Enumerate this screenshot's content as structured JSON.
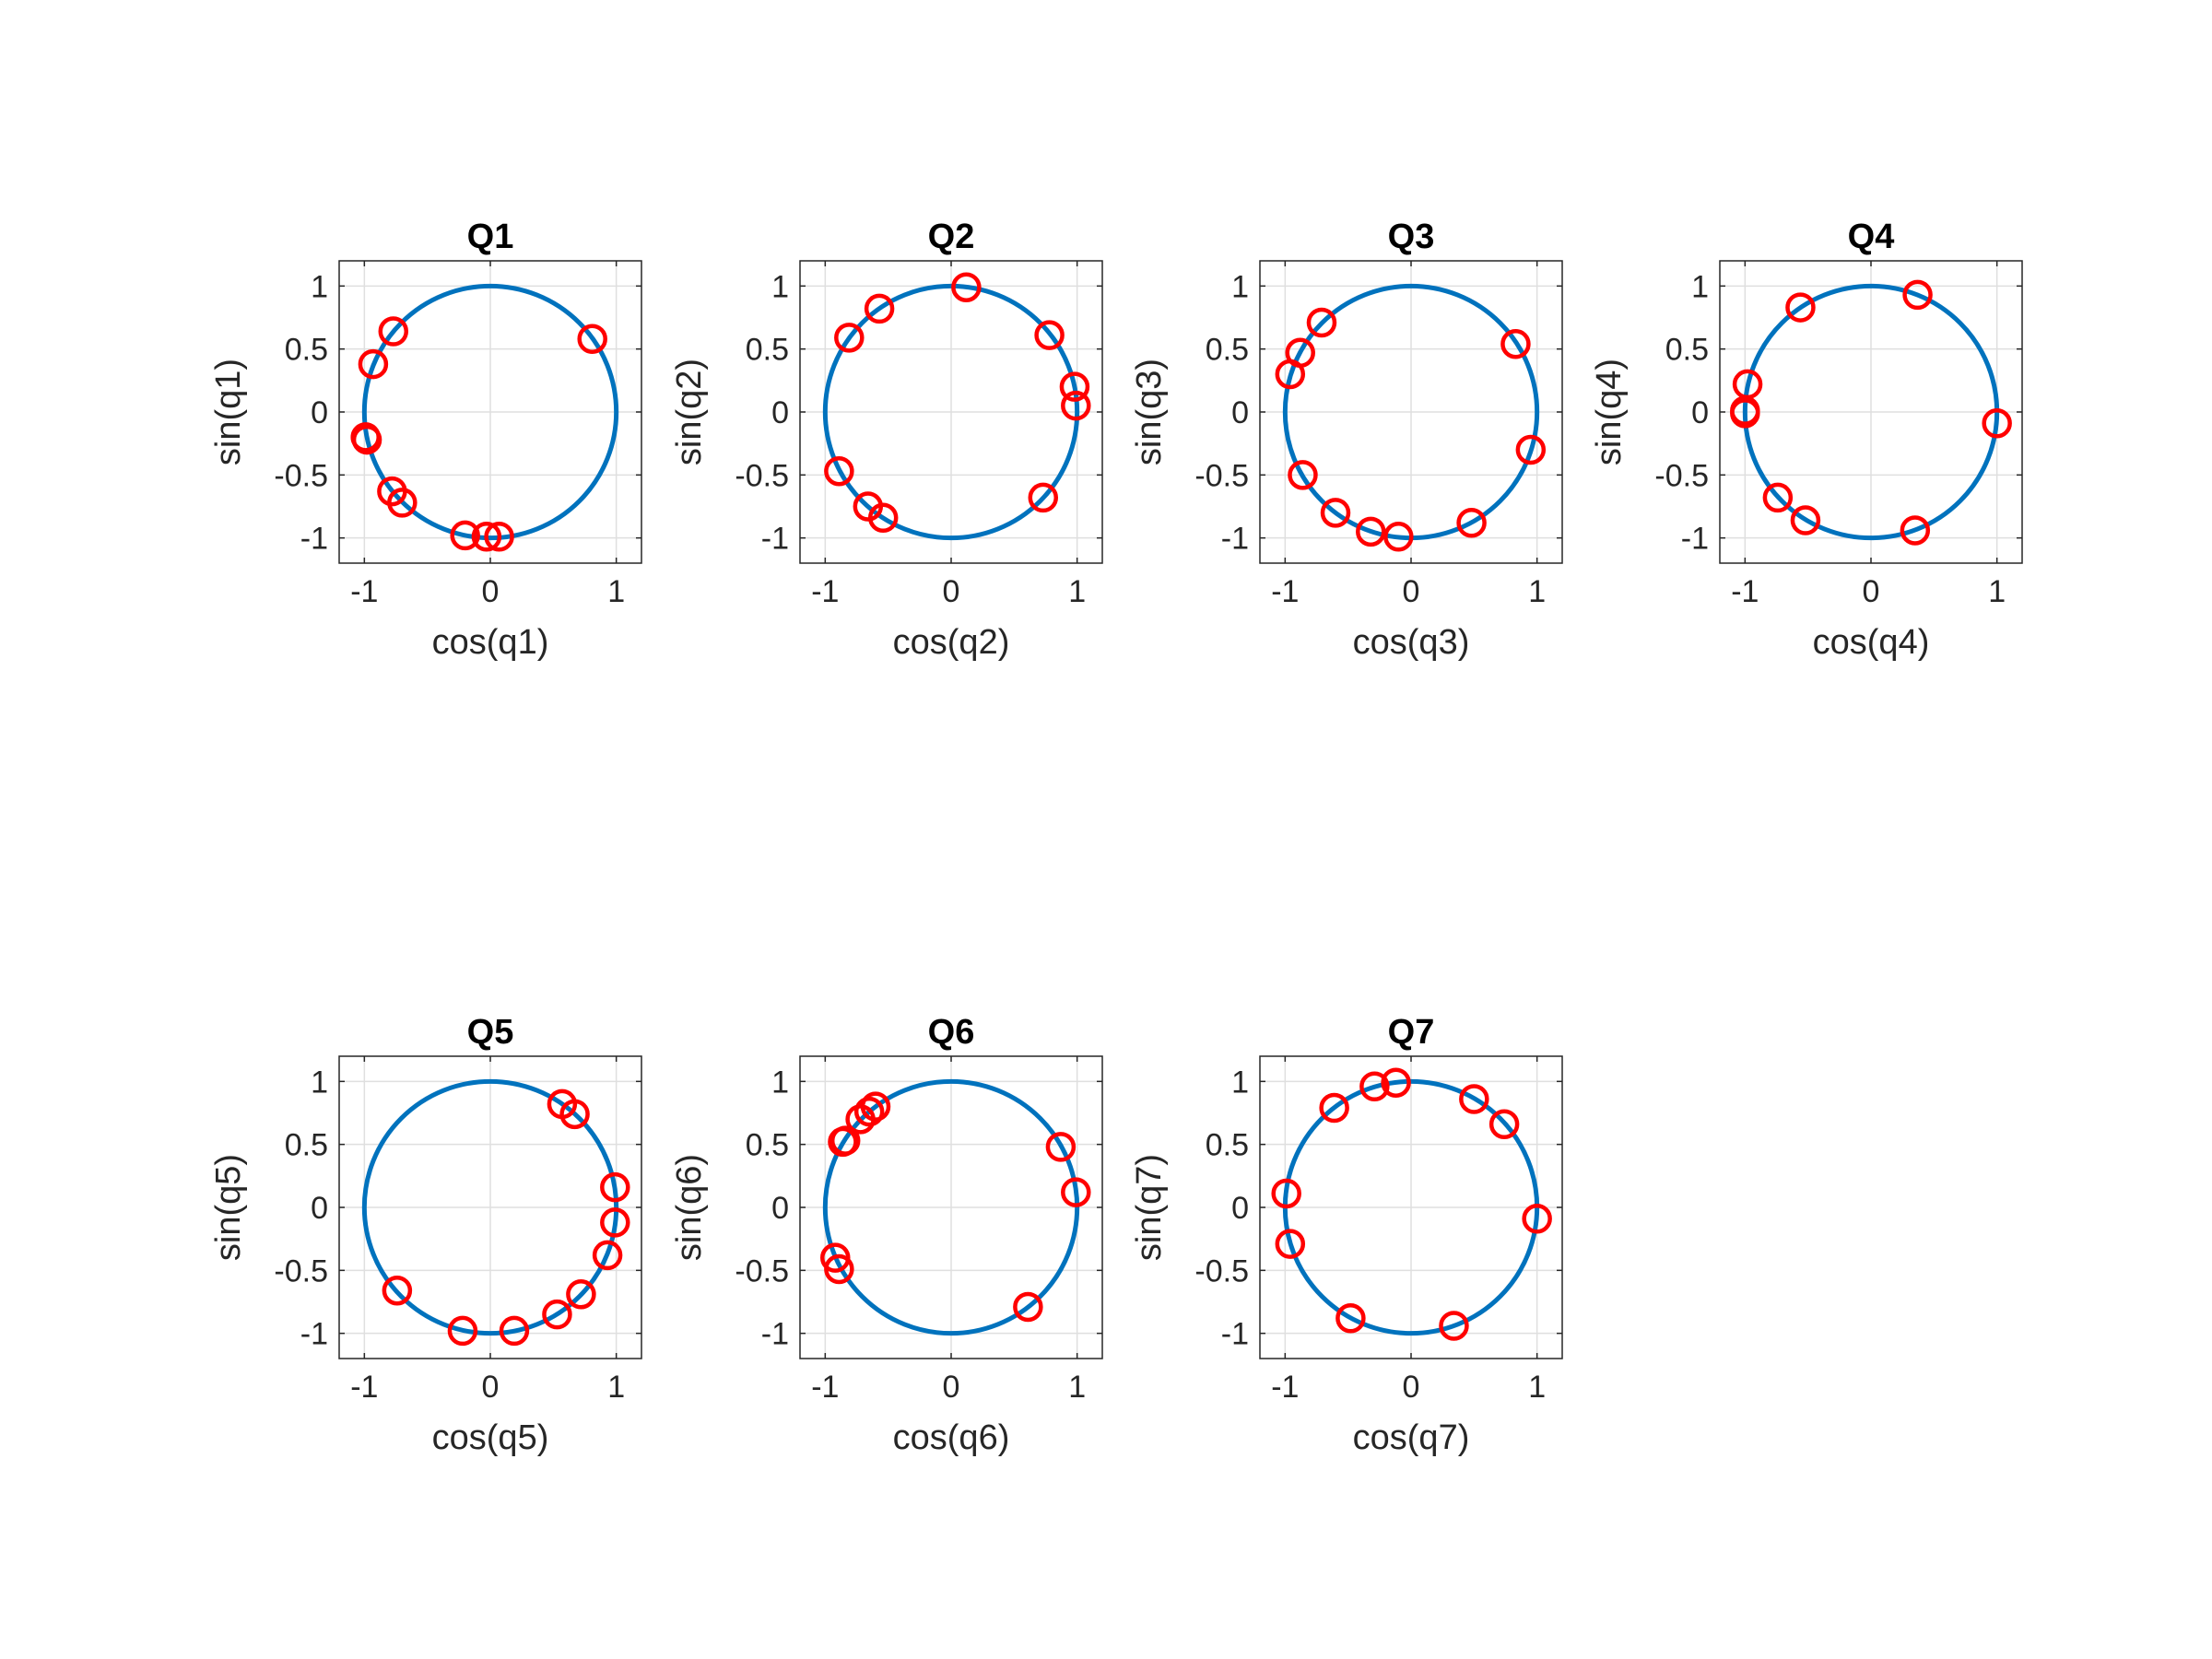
{
  "colors": {
    "circle": "#0072BD",
    "markers": "#FF0000",
    "axes": "#262626",
    "grid": "#DFDFDF"
  },
  "chart_data": [
    {
      "type": "scatter",
      "title": "Q1",
      "xlabel": "cos(q1)",
      "ylabel": "sin(q1)",
      "xlim": [
        -1.2,
        1.2
      ],
      "ylim": [
        -1.2,
        1.2
      ],
      "xticks": [
        -1,
        0,
        1
      ],
      "yticks": [
        -1,
        -0.5,
        0,
        0.5,
        1
      ],
      "xtick_labels": [
        "-1",
        "0",
        "1"
      ],
      "ytick_labels": [
        "-1",
        "-0.5",
        "0",
        "0.5",
        "1"
      ],
      "grid": true,
      "unit_circle": true,
      "points": [
        [
          0.81,
          0.58
        ],
        [
          -0.77,
          0.64
        ],
        [
          -0.93,
          0.38
        ],
        [
          -0.99,
          -0.2
        ],
        [
          -0.98,
          -0.22
        ],
        [
          -0.78,
          -0.63
        ],
        [
          -0.7,
          -0.72
        ],
        [
          -0.2,
          -0.98
        ],
        [
          -0.03,
          -0.99
        ],
        [
          0.07,
          -0.99
        ]
      ]
    },
    {
      "type": "scatter",
      "title": "Q2",
      "xlabel": "cos(q2)",
      "ylabel": "sin(q2)",
      "xlim": [
        -1.2,
        1.2
      ],
      "ylim": [
        -1.2,
        1.2
      ],
      "xticks": [
        -1,
        0,
        1
      ],
      "yticks": [
        -1,
        -0.5,
        0,
        0.5,
        1
      ],
      "xtick_labels": [
        "-1",
        "0",
        "1"
      ],
      "ytick_labels": [
        "-1",
        "-0.5",
        "0",
        "0.5",
        "1"
      ],
      "grid": true,
      "unit_circle": true,
      "points": [
        [
          0.12,
          0.99
        ],
        [
          -0.57,
          0.82
        ],
        [
          -0.81,
          0.59
        ],
        [
          0.78,
          0.61
        ],
        [
          0.98,
          0.2
        ],
        [
          0.99,
          0.05
        ],
        [
          -0.89,
          -0.47
        ],
        [
          -0.66,
          -0.75
        ],
        [
          -0.54,
          -0.84
        ],
        [
          0.73,
          -0.68
        ]
      ]
    },
    {
      "type": "scatter",
      "title": "Q3",
      "xlabel": "cos(q3)",
      "ylabel": "sin(q3)",
      "xlim": [
        -1.2,
        1.2
      ],
      "ylim": [
        -1.2,
        1.2
      ],
      "xticks": [
        -1,
        0,
        1
      ],
      "yticks": [
        -1,
        -0.5,
        0,
        0.5,
        1
      ],
      "xtick_labels": [
        "-1",
        "0",
        "1"
      ],
      "ytick_labels": [
        "-1",
        "-0.5",
        "0",
        "0.5",
        "1"
      ],
      "grid": true,
      "unit_circle": true,
      "points": [
        [
          -0.71,
          0.71
        ],
        [
          -0.88,
          0.47
        ],
        [
          -0.96,
          0.3
        ],
        [
          0.83,
          0.54
        ],
        [
          0.95,
          -0.3
        ],
        [
          -0.86,
          -0.5
        ],
        [
          -0.6,
          -0.8
        ],
        [
          -0.32,
          -0.95
        ],
        [
          -0.1,
          -0.99
        ],
        [
          0.48,
          -0.88
        ]
      ]
    },
    {
      "type": "scatter",
      "title": "Q4",
      "xlabel": "cos(q4)",
      "ylabel": "sin(q4)",
      "xlim": [
        -1.2,
        1.2
      ],
      "ylim": [
        -1.2,
        1.2
      ],
      "xticks": [
        -1,
        0,
        1
      ],
      "yticks": [
        -1,
        -0.5,
        0,
        0.5,
        1
      ],
      "xtick_labels": [
        "-1",
        "0",
        "1"
      ],
      "ytick_labels": [
        "-1",
        "-0.5",
        "0",
        "0.5",
        "1"
      ],
      "grid": true,
      "unit_circle": true,
      "points": [
        [
          -0.56,
          0.83
        ],
        [
          0.37,
          0.93
        ],
        [
          -0.98,
          0.22
        ],
        [
          -1.0,
          0.01
        ],
        [
          -1.0,
          -0.01
        ],
        [
          1.0,
          -0.09
        ],
        [
          -0.74,
          -0.68
        ],
        [
          -0.52,
          -0.86
        ],
        [
          0.35,
          -0.94
        ]
      ]
    },
    {
      "type": "scatter",
      "title": "Q5",
      "xlabel": "cos(q5)",
      "ylabel": "sin(q5)",
      "xlim": [
        -1.2,
        1.2
      ],
      "ylim": [
        -1.2,
        1.2
      ],
      "xticks": [
        -1,
        0,
        1
      ],
      "yticks": [
        -1,
        -0.5,
        0,
        0.5,
        1
      ],
      "xtick_labels": [
        "-1",
        "0",
        "1"
      ],
      "ytick_labels": [
        "-1",
        "-0.5",
        "0",
        "0.5",
        "1"
      ],
      "grid": true,
      "unit_circle": true,
      "points": [
        [
          0.57,
          0.82
        ],
        [
          0.67,
          0.74
        ],
        [
          0.99,
          0.16
        ],
        [
          0.99,
          -0.12
        ],
        [
          0.93,
          -0.38
        ],
        [
          0.72,
          -0.69
        ],
        [
          0.53,
          -0.85
        ],
        [
          0.19,
          -0.98
        ],
        [
          -0.22,
          -0.98
        ],
        [
          -0.74,
          -0.66
        ]
      ]
    },
    {
      "type": "scatter",
      "title": "Q6",
      "xlabel": "cos(q6)",
      "ylabel": "sin(q6)",
      "xlim": [
        -1.2,
        1.2
      ],
      "ylim": [
        -1.2,
        1.2
      ],
      "xticks": [
        -1,
        0,
        1
      ],
      "yticks": [
        -1,
        -0.5,
        0,
        0.5,
        1
      ],
      "xtick_labels": [
        "-1",
        "0",
        "1"
      ],
      "ytick_labels": [
        "-1",
        "-0.5",
        "0",
        "0.5",
        "1"
      ],
      "grid": true,
      "unit_circle": true,
      "points": [
        [
          -0.6,
          0.8
        ],
        [
          -0.65,
          0.76
        ],
        [
          -0.72,
          0.7
        ],
        [
          -0.84,
          0.53
        ],
        [
          -0.86,
          0.52
        ],
        [
          0.87,
          0.48
        ],
        [
          0.99,
          0.12
        ],
        [
          -0.92,
          -0.4
        ],
        [
          -0.89,
          -0.49
        ],
        [
          0.61,
          -0.79
        ]
      ]
    },
    {
      "type": "scatter",
      "title": "Q7",
      "xlabel": "cos(q7)",
      "ylabel": "sin(q7)",
      "xlim": [
        -1.2,
        1.2
      ],
      "ylim": [
        -1.2,
        1.2
      ],
      "xticks": [
        -1,
        0,
        1
      ],
      "yticks": [
        -1,
        -0.5,
        0,
        0.5,
        1
      ],
      "xtick_labels": [
        "-1",
        "0",
        "1"
      ],
      "ytick_labels": [
        "-1",
        "-0.5",
        "0",
        "0.5",
        "1"
      ],
      "grid": true,
      "unit_circle": true,
      "points": [
        [
          -0.12,
          0.99
        ],
        [
          -0.29,
          0.96
        ],
        [
          -0.61,
          0.79
        ],
        [
          0.5,
          0.86
        ],
        [
          0.74,
          0.66
        ],
        [
          -0.99,
          0.11
        ],
        [
          1.0,
          -0.09
        ],
        [
          -0.96,
          -0.29
        ],
        [
          -0.48,
          -0.88
        ],
        [
          0.34,
          -0.94
        ]
      ]
    }
  ]
}
